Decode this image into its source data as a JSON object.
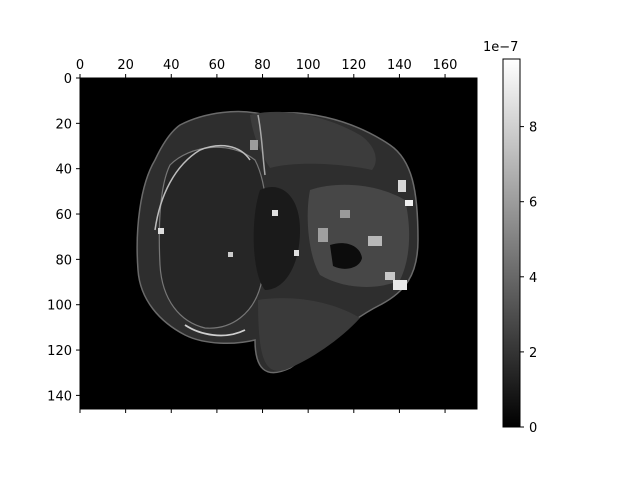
{
  "chart_data": {
    "type": "heatmap",
    "title": "",
    "xlabel": "",
    "ylabel": "",
    "colormap": "gray",
    "image_shape": [
      146,
      174
    ],
    "xlim": [
      0,
      174
    ],
    "ylim": [
      146,
      0
    ],
    "x_axis_position": "top",
    "grid": false,
    "x_ticks": [
      0,
      20,
      40,
      60,
      80,
      100,
      120,
      140,
      160
    ],
    "x_tick_labels": [
      "0",
      "20",
      "40",
      "60",
      "80",
      "100",
      "120",
      "140",
      "160"
    ],
    "y_ticks": [
      0,
      20,
      40,
      60,
      80,
      100,
      120,
      140
    ],
    "y_tick_labels": [
      "0",
      "20",
      "40",
      "60",
      "80",
      "100",
      "120",
      "140"
    ],
    "colorbar": {
      "vmin": 0,
      "vmax": 9.8e-07,
      "ticks": [
        0,
        2,
        4,
        6,
        8
      ],
      "tick_labels": [
        "0",
        "2",
        "4",
        "6",
        "8"
      ],
      "offset_label": "1e−7"
    },
    "background_value": 0,
    "content": "axial brain slice: head outline spanning roughly x 22–148, y 16–128; skull rim and several spots bright (about 6–9.8e-7), brain tissue mostly dark gray (about 1–3e-7)"
  }
}
